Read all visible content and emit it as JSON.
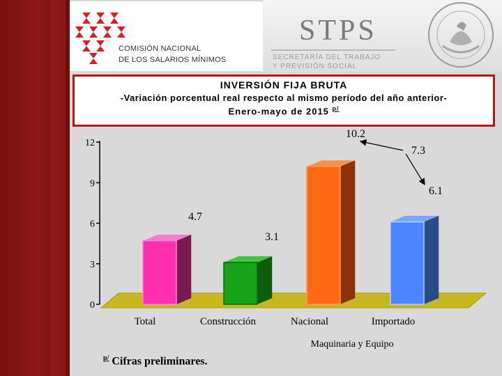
{
  "header": {
    "org_line1": "COMISIÓN NACIONAL",
    "org_line2": "DE LOS SALARIOS MÍNIMOS",
    "ministry_name": "STPS",
    "ministry_line1": "SECRETARÍA DEL TRABAJO",
    "ministry_line2": "Y PREVISIÓN SOCIAL",
    "seal_text": "ESTADOS UNIDOS MEXICANOS"
  },
  "title": {
    "line1": "INVERSIÓN FIJA BRUTA",
    "line2": "-Variación porcentual real respecto al mismo período del año anterior-",
    "line3": "Enero-mayo de 2015",
    "line3_sup": "p/"
  },
  "footnote": {
    "marker": "p/",
    "text": "Cifras preliminares."
  },
  "colors": {
    "accent_red": "#b01818",
    "bar_total": "#ff2fb0",
    "bar_construccion": "#18a418",
    "bar_nacional": "#ff6a16",
    "bar_importado": "#4a86ff",
    "floor": "#c8b820"
  },
  "chart_data": {
    "type": "bar",
    "categories": [
      "Total",
      "Construcción",
      "Nacional",
      "Importado"
    ],
    "values": [
      4.7,
      3.1,
      10.2,
      6.1
    ],
    "value_labels": [
      "4.7",
      "3.1",
      "10.2",
      "6.1"
    ],
    "group_label": "Maquinaria y Equipo",
    "annotation": {
      "label": "7.3",
      "points_to": [
        "Nacional",
        "Importado"
      ]
    },
    "yticks": [
      "0",
      "3",
      "6",
      "9",
      "12"
    ],
    "ylim": [
      0,
      12
    ],
    "title": "",
    "xlabel": "",
    "ylabel": "",
    "grid": false,
    "style": "3d"
  }
}
